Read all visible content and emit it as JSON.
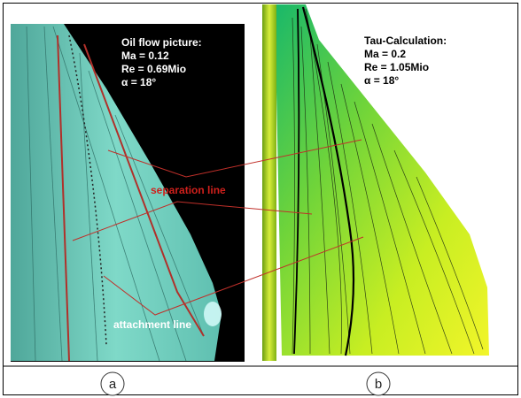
{
  "panels": [
    {
      "label": "a",
      "caption": [
        "Oil flow picture:",
        "Ma = 0.12",
        "Re = 0.69Mio",
        "α = 18°"
      ]
    },
    {
      "label": "b",
      "caption": [
        "Tau-Calculation:",
        "Ma = 0.2",
        "Re = 1.05Mio",
        "α = 18°"
      ]
    }
  ],
  "annotations": {
    "separation": "separation line",
    "attachment": "attachment line"
  }
}
